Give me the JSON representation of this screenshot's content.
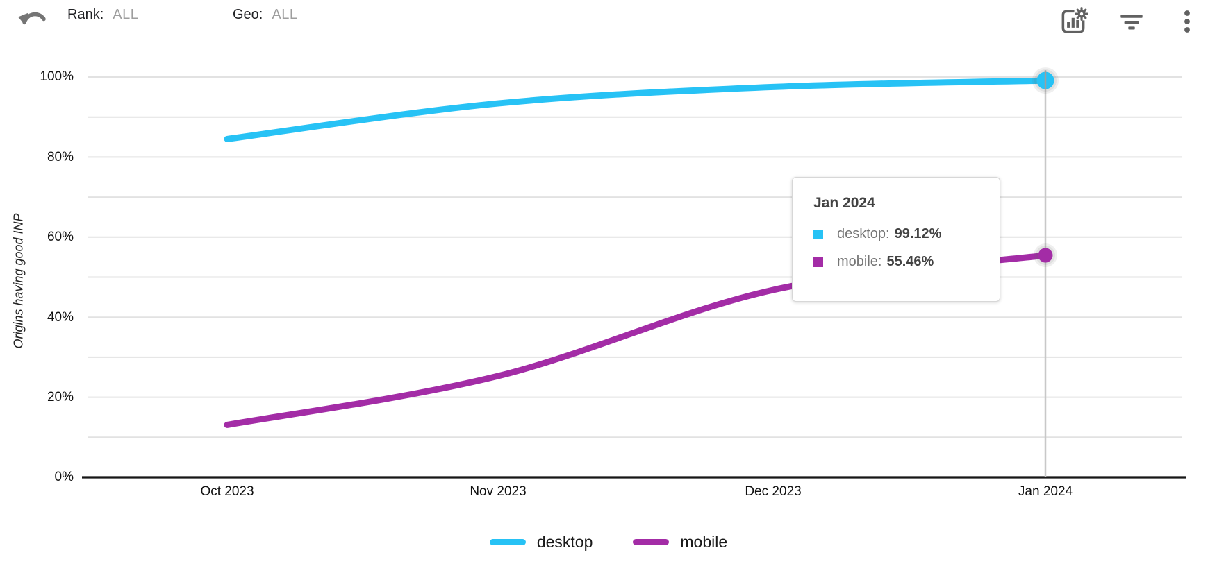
{
  "toolbar": {
    "rank": {
      "label": "Rank:",
      "value": "ALL"
    },
    "geo": {
      "label": "Geo:",
      "value": "ALL"
    },
    "icons": [
      "undo-arrow",
      "chart-settings",
      "filter",
      "more-vertical"
    ],
    "icon_color": "#616161"
  },
  "chart_data": {
    "type": "line",
    "title": "",
    "xlabel": "",
    "ylabel": "Origins having good INP",
    "categories": [
      "Oct 2023",
      "Nov 2023",
      "Dec 2023",
      "Jan 2024"
    ],
    "series": [
      {
        "name": "desktop",
        "color": "#27C2F5",
        "values": [
          84.5,
          93.4,
          97.5,
          99.12
        ]
      },
      {
        "name": "mobile",
        "color": "#A32CA6",
        "values": [
          13.1,
          25.3,
          46.8,
          55.46
        ]
      }
    ],
    "ylim": [
      0,
      100
    ],
    "grid": "horizontal every 10%",
    "gridline_color": "#e2e2e2",
    "yticks_labeled": [
      "100%",
      "80%",
      "60%",
      "40%",
      "20%",
      "0%"
    ],
    "legend_position": "bottom",
    "highlighted_x": "Jan 2024",
    "crosshair_color": "#c8c8c8"
  },
  "tooltip": {
    "title": "Jan 2024",
    "rows": [
      {
        "series": "desktop",
        "label": "desktop:",
        "value": "99.12%"
      },
      {
        "series": "mobile",
        "label": "mobile:",
        "value": "55.46%"
      }
    ]
  },
  "legend": {
    "items": [
      {
        "label": "desktop"
      },
      {
        "label": "mobile"
      }
    ]
  }
}
